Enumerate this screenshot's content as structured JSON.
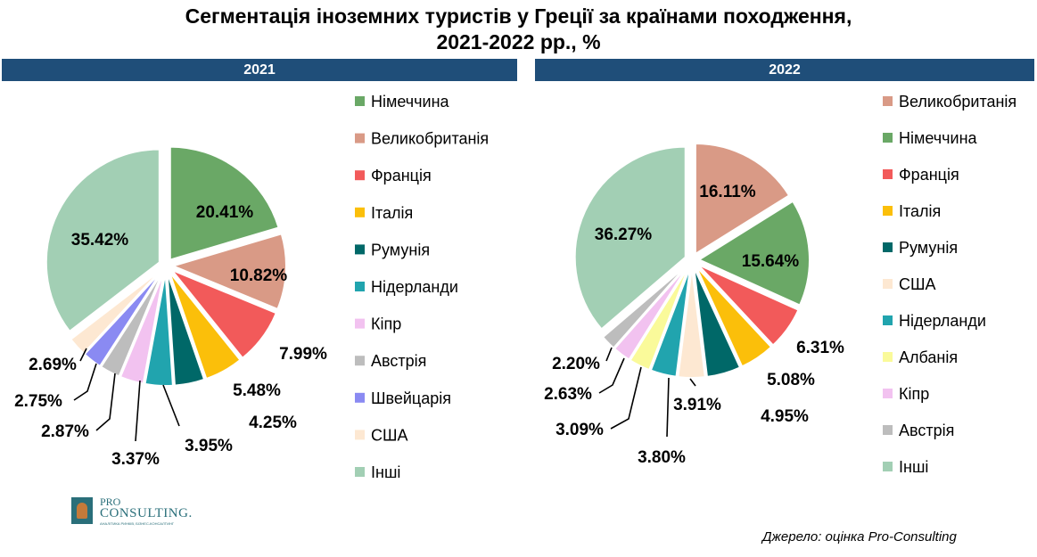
{
  "title_line1": "Сегментація іноземних туристів у Греції за країнами походження,",
  "title_line2": "2021-2022 рр., %",
  "source": "Джерело: оцінка Pro-Consulting",
  "logo": {
    "pro": "PRO",
    "name": "CONSULTING.",
    "sub": "АНАЛІТИКА РИНКІВ, БІЗНЕС-КОНСАЛТИНГ"
  },
  "chart_data": [
    {
      "type": "pie",
      "title": "2021",
      "slices": [
        {
          "label": "Німеччина",
          "value": 20.41,
          "display": "20.41%",
          "color": "#6aa866"
        },
        {
          "label": "Великобританія",
          "value": 10.82,
          "display": "10.82%",
          "color": "#d99a86"
        },
        {
          "label": "Франція",
          "value": 7.99,
          "display": "7.99%",
          "color": "#f25a5a"
        },
        {
          "label": "Італія",
          "value": 5.48,
          "display": "5.48%",
          "color": "#fbbf0a"
        },
        {
          "label": "Румунія",
          "value": 4.25,
          "display": "4.25%",
          "color": "#006868"
        },
        {
          "label": "Нідерланди",
          "value": 3.95,
          "display": "3.95%",
          "color": "#21a4ae"
        },
        {
          "label": "Кіпр",
          "value": 3.37,
          "display": "3.37%",
          "color": "#f2c2f0"
        },
        {
          "label": "Австрія",
          "value": 2.87,
          "display": "2.87%",
          "color": "#bdbdbd"
        },
        {
          "label": "Швейцарія",
          "value": 2.75,
          "display": "2.75%",
          "color": "#8a8af2"
        },
        {
          "label": "США",
          "value": 2.69,
          "display": "2.69%",
          "color": "#fde8d2"
        },
        {
          "label": "Інші",
          "value": 35.42,
          "display": "35.42%",
          "color": "#a2cfb4"
        }
      ]
    },
    {
      "type": "pie",
      "title": "2022",
      "slices": [
        {
          "label": "Великобританія",
          "value": 16.11,
          "display": "16.11%",
          "color": "#d99a86"
        },
        {
          "label": "Німеччина",
          "value": 15.64,
          "display": "15.64%",
          "color": "#6aa866"
        },
        {
          "label": "Франція",
          "value": 6.31,
          "display": "6.31%",
          "color": "#f25a5a"
        },
        {
          "label": "Італія",
          "value": 5.08,
          "display": "5.08%",
          "color": "#fbbf0a"
        },
        {
          "label": "Румунія",
          "value": 4.95,
          "display": "4.95%",
          "color": "#006868"
        },
        {
          "label": "США",
          "value": 3.91,
          "display": "3.91%",
          "color": "#fde8d2"
        },
        {
          "label": "Нідерланди",
          "value": 3.8,
          "display": "3.80%",
          "color": "#21a4ae"
        },
        {
          "label": "Албанія",
          "value": 3.09,
          "display": "3.09%",
          "color": "#fafa9a"
        },
        {
          "label": "Кіпр",
          "value": 2.63,
          "display": "2.63%",
          "color": "#f2c2f0"
        },
        {
          "label": "Австрія",
          "value": 2.2,
          "display": "2.20%",
          "color": "#bdbdbd"
        },
        {
          "label": "Інші",
          "value": 36.27,
          "display": "36.27%",
          "color": "#a2cfb4"
        }
      ]
    }
  ]
}
